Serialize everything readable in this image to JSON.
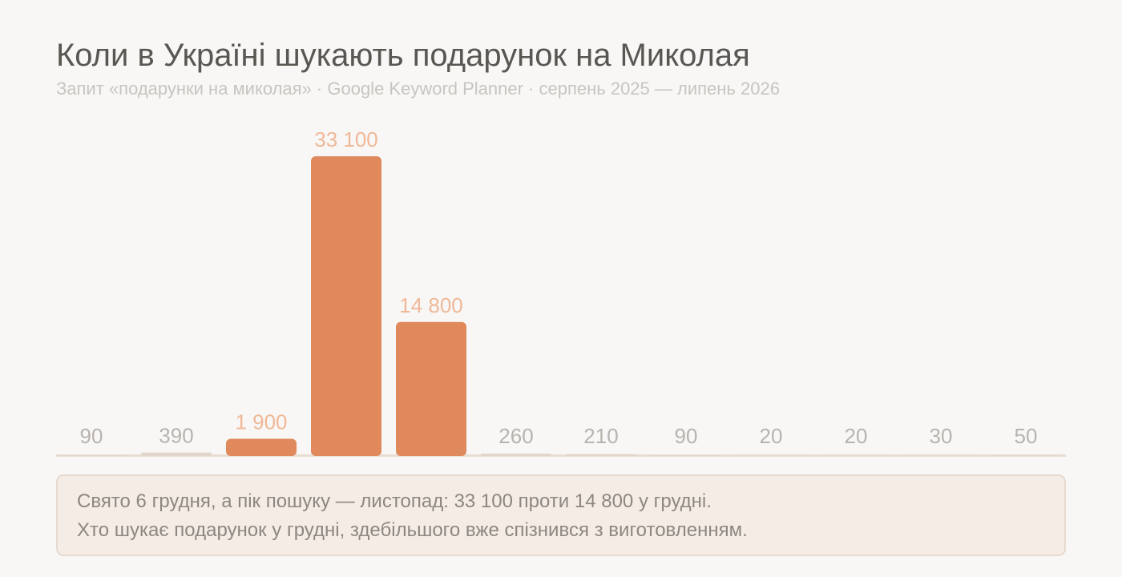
{
  "chart_data": {
    "type": "bar",
    "title": "Коли в Україні шукають подарунок на Миколая",
    "subtitle": "Запит «подарунки на миколая» · Google Keyword Planner · серпень 2025 — липень 2026",
    "values": [
      90,
      390,
      1900,
      33100,
      14800,
      260,
      210,
      90,
      20,
      20,
      30,
      50
    ],
    "value_labels": [
      "90",
      "390",
      "1 900",
      "33 100",
      "14 800",
      "260",
      "210",
      "90",
      "20",
      "20",
      "30",
      "50"
    ],
    "colors": [
      "#e2d6cb",
      "#e2d6cb",
      "#e0895c",
      "#e0895c",
      "#e0895c",
      "#e2d6cb",
      "#e2d6cb",
      "#e2d6cb",
      "#e2d6cb",
      "#e2d6cb",
      "#e2d6cb",
      "#e2d6cb"
    ],
    "annotation": [
      "Свято 6 грудня, а пік пошуку — листопад: 33 100 проти 14 800 у грудні.",
      "Хто шукає подарунок у грудні, здебільшого вже спізнився з виготовленням."
    ]
  }
}
